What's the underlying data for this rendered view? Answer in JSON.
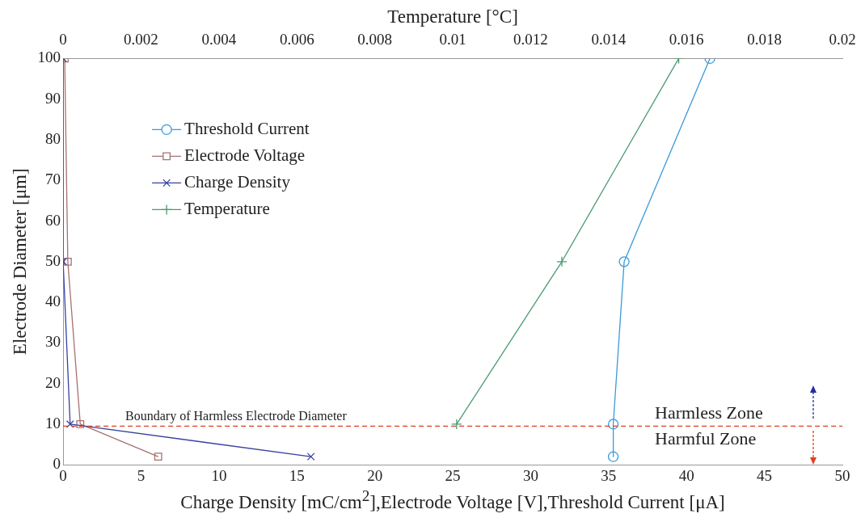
{
  "chart_data": {
    "type": "line",
    "xlabel": "Charge Density [mC/cm$^{2}$],Electrode Voltage [V],Threshold Current [μA]",
    "ylabel": "Electrode Diameter [μm]",
    "x2label": "Temperature [°C]",
    "xlim": [
      0,
      50
    ],
    "xticks": [
      0,
      5,
      10,
      15,
      20,
      25,
      30,
      35,
      40,
      45,
      50
    ],
    "ylim": [
      0,
      100
    ],
    "yticks": [
      0,
      10,
      20,
      30,
      40,
      50,
      60,
      70,
      80,
      90,
      100
    ],
    "x2lim": [
      0,
      0.02
    ],
    "x2ticks": [
      0,
      0.002,
      0.004,
      0.006,
      0.008,
      0.01,
      0.012,
      0.014,
      0.016,
      0.018,
      0.02
    ],
    "grid": false,
    "legend": "top left",
    "line_style": "solid",
    "series": [
      {
        "name": "Threshold Current",
        "color": "#3a9ad9",
        "marker": "circle",
        "x": [
          41.5,
          36.0,
          35.3,
          35.3
        ],
        "values": [
          100,
          50,
          10,
          2
        ]
      },
      {
        "name": "Electrode Voltage",
        "color": "#a87070",
        "marker": "square",
        "x": [
          0.1,
          0.3,
          1.1,
          6.1
        ],
        "values": [
          100,
          50,
          10,
          2
        ]
      },
      {
        "name": "Charge Density",
        "color": "#3540a0",
        "marker": "cross",
        "x": [
          0,
          0,
          0.45,
          15.9
        ],
        "values": [
          100,
          50,
          10,
          2
        ]
      },
      {
        "name": "Temperature",
        "color": "#4a9a70",
        "marker": "plus",
        "axis": "x2",
        "x": [
          0.0158,
          0.0128,
          0.0101
        ],
        "values": [
          100,
          50,
          10
        ]
      }
    ],
    "ref_lines": [
      {
        "axis": "y",
        "value": 9.5,
        "label": "Boundary of Harmless Electrode Diameter",
        "color": "#e04020",
        "line_style": "dashed"
      }
    ],
    "annotations": [
      "Harmless Zone",
      "Harmful Zone"
    ]
  }
}
